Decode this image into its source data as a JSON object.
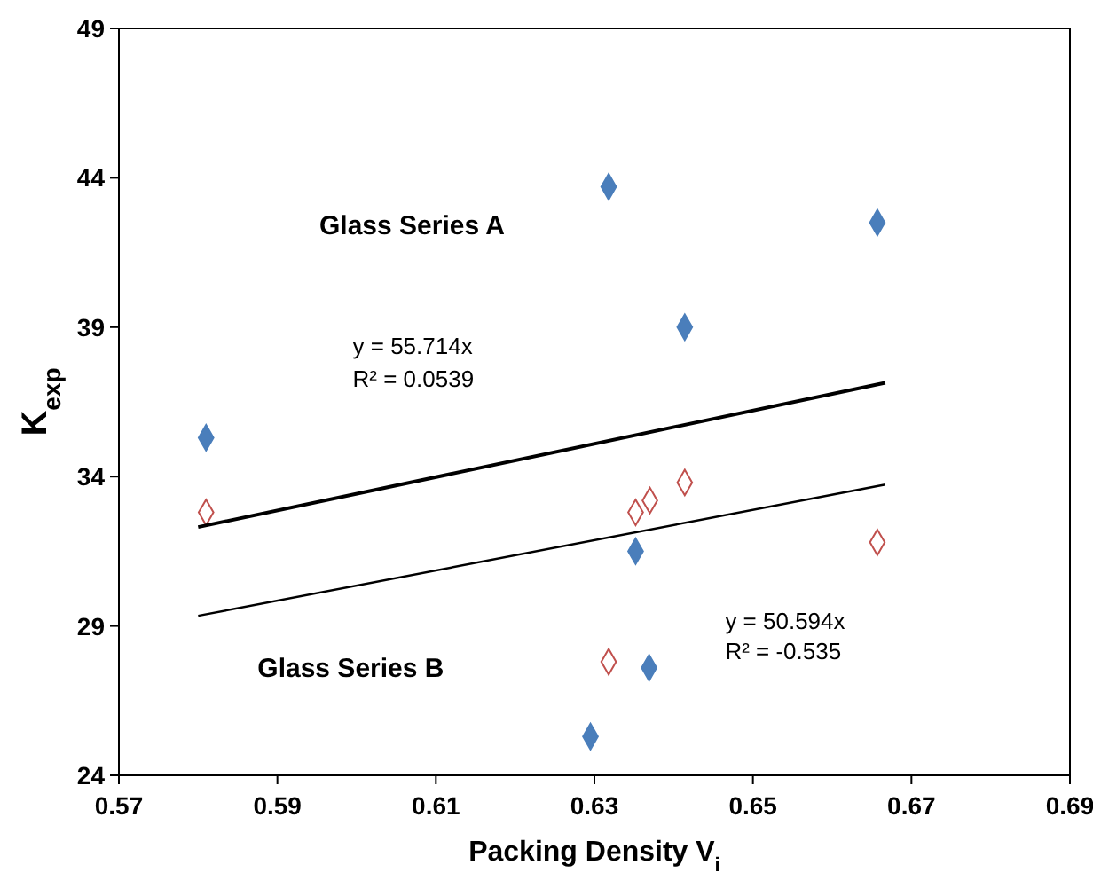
{
  "chart_data": {
    "type": "scatter",
    "xlabel": "Packing Density V$_{i}$",
    "ylabel": "K$_{exp}$",
    "xlim": [
      0.57,
      0.69
    ],
    "xticks": [
      {
        "value": 0.57,
        "label": "0.57"
      },
      {
        "value": 0.59,
        "label": "0.59"
      },
      {
        "value": 0.61,
        "label": "0.61"
      },
      {
        "value": 0.63,
        "label": "0.63"
      },
      {
        "value": 0.65,
        "label": "0.65"
      },
      {
        "value": 0.67,
        "label": "0.67"
      },
      {
        "value": 0.69,
        "label": "0.69"
      }
    ],
    "ylim": [
      24,
      49
    ],
    "yticks": [
      24,
      29,
      34,
      39,
      44,
      49
    ],
    "grid": false,
    "marker": "diamond",
    "series": [
      {
        "color": "#4a7ebb",
        "x": [
          0.581,
          0.6318,
          0.6414,
          0.6657,
          0.6352,
          0.6295,
          0.6369
        ],
        "values": [
          35.3,
          43.7,
          39.0,
          42.5,
          31.5,
          25.3,
          27.6
        ]
      },
      {
        "color": "#c0504d",
        "x": [
          0.581,
          0.6352,
          0.637,
          0.6414,
          0.6657,
          0.6318
        ],
        "values": [
          32.8,
          32.8,
          33.2,
          33.8,
          31.8,
          27.8
        ]
      },
      {
        "type": "line",
        "marker": "none",
        "color": "#000000",
        "x": [
          0.58,
          0.6667
        ],
        "values": [
          32.31,
          37.14
        ]
      },
      {
        "type": "line",
        "marker": "none",
        "color": "#000000",
        "x": [
          0.58,
          0.6667
        ],
        "values": [
          29.34,
          33.73
        ]
      }
    ],
    "annotations": [
      "Glass Series A",
      "y = 55.714x",
      "R² = 0.0539",
      "Glass Series B",
      "y = 50.594x",
      "R² = -0.535"
    ]
  }
}
